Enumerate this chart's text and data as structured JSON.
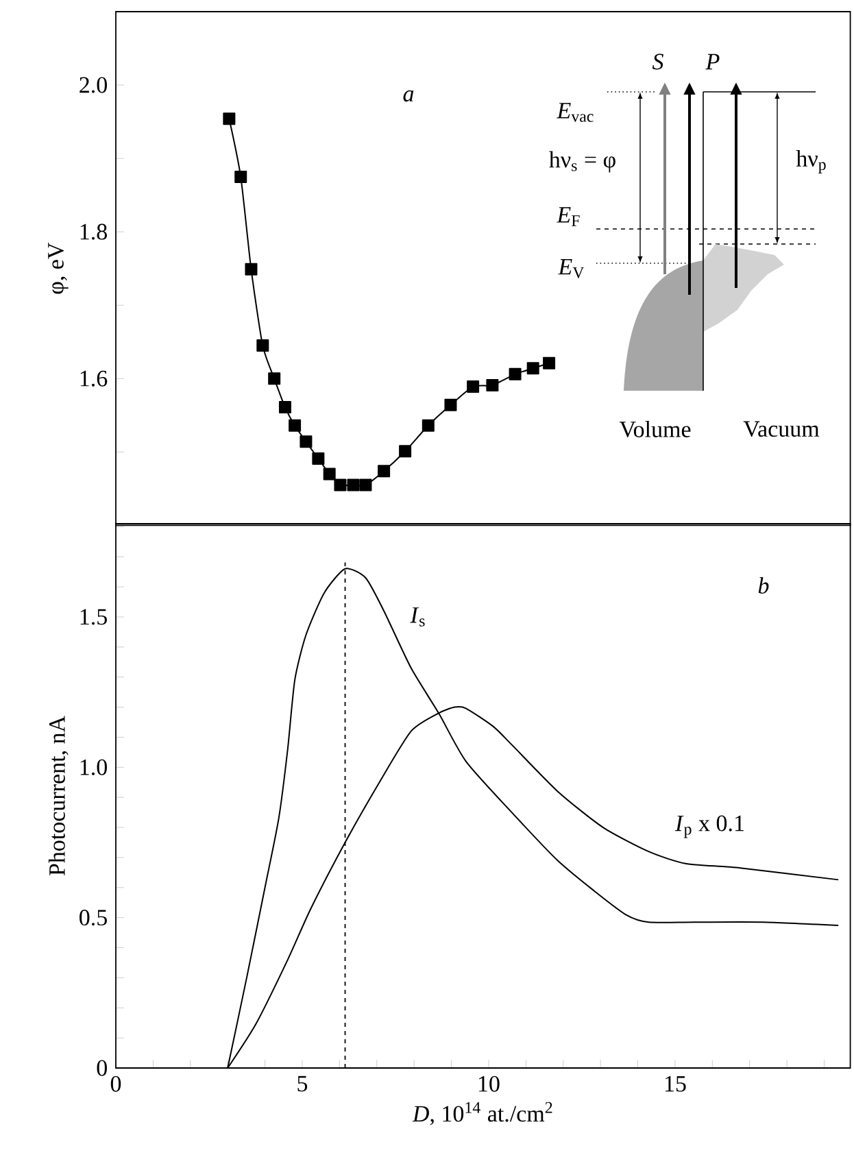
{
  "chart_data": [
    {
      "type": "line",
      "ylabel": "φ, eV",
      "xlim": [
        0,
        19.7
      ],
      "ylim": [
        1.4,
        2.1
      ],
      "tick_labels": "y",
      "marker": "square",
      "line_style": "solid",
      "yticks": [
        {
          "value": 1.5,
          "label": null
        },
        1.6,
        {
          "value": 1.7,
          "label": null
        },
        1.8,
        {
          "value": 1.9,
          "label": null
        },
        {
          "value": 2.0,
          "label": "2.0"
        }
      ],
      "series": [
        {
          "color": "#000000",
          "x": [
            3.04,
            3.35,
            3.63,
            3.94,
            4.25,
            4.54,
            4.8,
            5.1,
            5.43,
            5.73,
            6.02,
            6.37,
            6.7,
            7.19,
            7.76,
            8.38,
            8.98,
            9.58,
            10.1,
            10.71,
            11.19,
            11.62
          ],
          "values": [
            1.954,
            1.875,
            1.749,
            1.645,
            1.6,
            1.561,
            1.536,
            1.514,
            1.491,
            1.47,
            1.455,
            1.455,
            1.455,
            1.474,
            1.501,
            1.536,
            1.564,
            1.589,
            1.591,
            1.606,
            1.614,
            1.621
          ]
        }
      ],
      "annotations": [
        "a",
        "S",
        "P",
        "*E*$_{vac}$",
        "hν$_{s}$ = φ",
        "hν$_{p}$",
        "*E*$_{F}$",
        "*E*$_{V}$",
        "Volume",
        "Vacuum"
      ]
    },
    {
      "type": "line",
      "xlabel": "*D*, 10$^{14}$ at./cm$^{2}$",
      "ylabel": "Photocurrent, nA",
      "xlim": [
        0,
        19.7
      ],
      "ylim": [
        0,
        1.81
      ],
      "marker": "none",
      "line_style": "solid",
      "xticks": [
        0,
        {
          "value": 1,
          "label": null
        },
        {
          "value": 2,
          "label": null
        },
        {
          "value": 3,
          "label": null
        },
        {
          "value": 4,
          "label": null
        },
        5,
        {
          "value": 6,
          "label": null
        },
        {
          "value": 7,
          "label": null
        },
        {
          "value": 8,
          "label": null
        },
        {
          "value": 9,
          "label": null
        },
        10,
        {
          "value": 11,
          "label": null
        },
        {
          "value": 12,
          "label": null
        },
        {
          "value": 13,
          "label": null
        },
        {
          "value": 14,
          "label": null
        },
        15,
        {
          "value": 16,
          "label": null
        },
        {
          "value": 17,
          "label": null
        },
        {
          "value": 18,
          "label": null
        },
        {
          "value": 19,
          "label": null
        }
      ],
      "yticks": [
        0,
        {
          "value": 0.1,
          "label": null
        },
        {
          "value": 0.2,
          "label": null
        },
        {
          "value": 0.3,
          "label": null
        },
        {
          "value": 0.4,
          "label": null
        },
        0.5,
        {
          "value": 0.6,
          "label": null
        },
        {
          "value": 0.7,
          "label": null
        },
        {
          "value": 0.8,
          "label": null
        },
        {
          "value": 0.9,
          "label": null
        },
        {
          "value": 1.0,
          "label": "1.0"
        },
        {
          "value": 1.1,
          "label": null
        },
        {
          "value": 1.2,
          "label": null
        },
        {
          "value": 1.3,
          "label": null
        },
        {
          "value": 1.4,
          "label": null
        },
        1.5,
        {
          "value": 1.6,
          "label": null
        },
        {
          "value": 1.7,
          "label": null
        },
        {
          "value": 1.8,
          "label": null
        }
      ],
      "series": [
        {
          "color": "#000000",
          "x": [
            3.0,
            3.51,
            4.0,
            4.37,
            4.61,
            4.8,
            5.1,
            5.59,
            6.15,
            6.7,
            7.19,
            7.92,
            8.66,
            9.39,
            10.62,
            11.85,
            12.82,
            13.68,
            14.29,
            15.52,
            17.36,
            19.38
          ],
          "values": [
            0,
            0.3,
            0.6,
            0.83,
            1.06,
            1.29,
            1.44,
            1.58,
            1.66,
            1.63,
            1.52,
            1.33,
            1.18,
            1.02,
            0.85,
            0.69,
            0.59,
            0.51,
            0.485,
            0.485,
            0.485,
            0.474
          ]
        },
        {
          "color": "#000000",
          "x": [
            3.0,
            3.76,
            4.61,
            5.23,
            6.15,
            7.07,
            7.92,
            8.66,
            9.09,
            9.39,
            10.13,
            10.62,
            11.85,
            13.07,
            14.29,
            15.28,
            16.75,
            19.38
          ],
          "values": [
            0,
            0.147,
            0.36,
            0.53,
            0.75,
            0.95,
            1.12,
            1.18,
            1.2,
            1.196,
            1.135,
            1.075,
            0.92,
            0.8,
            0.72,
            0.68,
            0.665,
            0.626
          ]
        }
      ],
      "ref_lines": [
        {
          "axis": "x",
          "value": 6.15,
          "line_style": "dashed"
        }
      ],
      "annotations": [
        "b",
        "*I*$_{s}$",
        "*I*$_{p}$ x 0.1"
      ]
    }
  ]
}
